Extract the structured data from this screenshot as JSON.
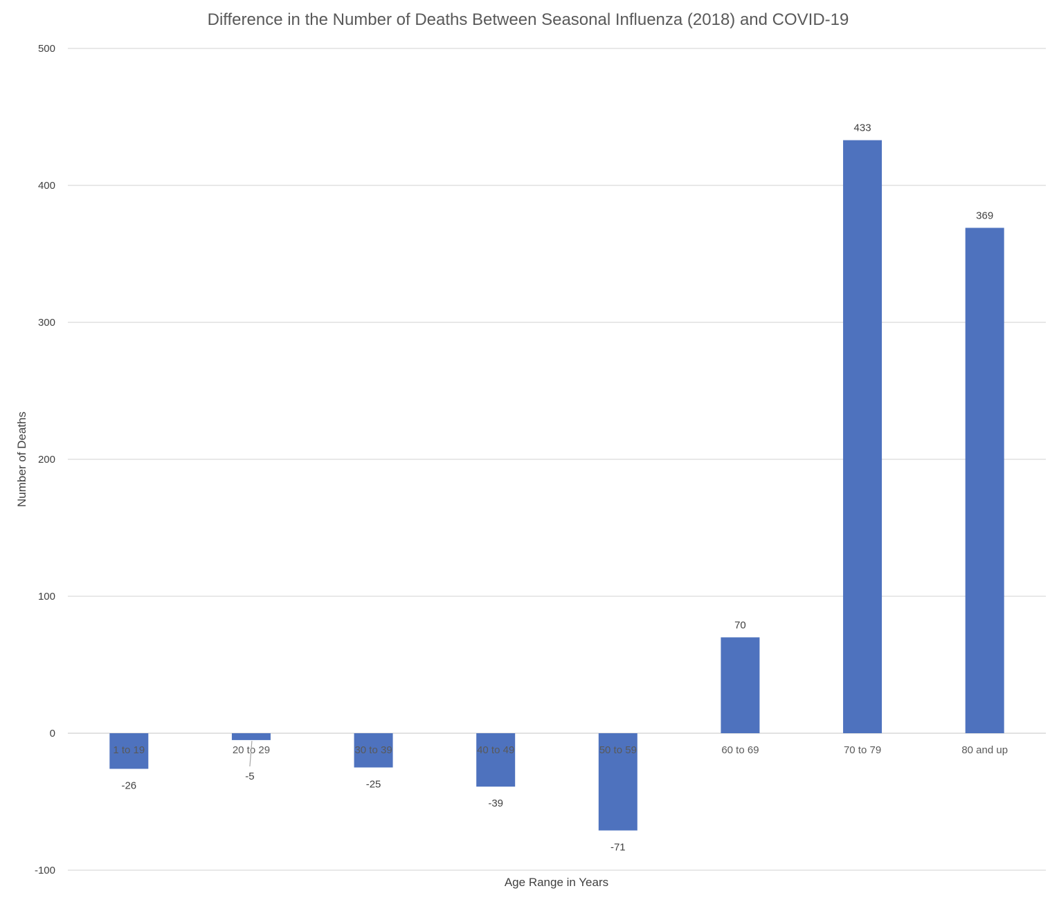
{
  "chart_data": {
    "type": "bar",
    "title": "Difference in the Number of Deaths Between Seasonal Influenza (2018) and COVID-19",
    "xlabel": "Age Range in Years",
    "ylabel": "Number of Deaths",
    "categories": [
      "1 to 19",
      "20 to 29",
      "30 to 39",
      "40 to 49",
      "50 to 59",
      "60 to 69",
      "70 to 79",
      "80 and up"
    ],
    "values": [
      -26,
      -5,
      -25,
      -39,
      -71,
      70,
      433,
      369
    ],
    "data_labels": [
      "-26",
      "-5",
      "-25",
      "-39",
      "-71",
      "70",
      "433",
      "369"
    ],
    "ylim": [
      -100,
      500
    ],
    "yticks": [
      -100,
      0,
      100,
      200,
      300,
      400,
      500
    ],
    "ytick_labels": [
      "-100",
      "0",
      "100",
      "200",
      "300",
      "400",
      "500"
    ],
    "grid": true,
    "legend": "none",
    "bar_color": "#4e72be"
  }
}
